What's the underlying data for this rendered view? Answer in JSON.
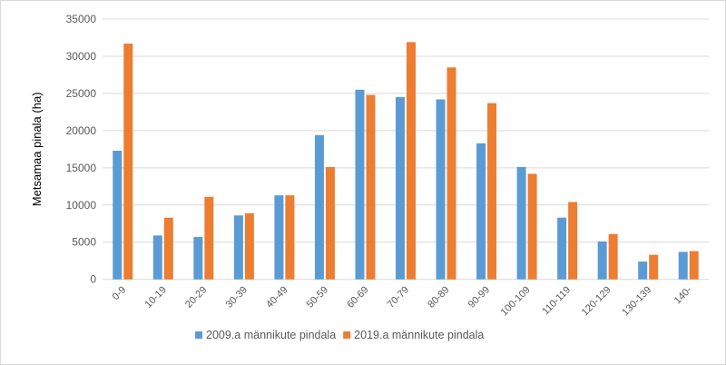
{
  "chart_data": {
    "type": "bar",
    "title": "",
    "xlabel": "",
    "ylabel": "Metsamaa pinala (ha)",
    "ylim": [
      0,
      35000
    ],
    "yticks": [
      0,
      5000,
      10000,
      15000,
      20000,
      25000,
      30000,
      35000
    ],
    "grid": true,
    "legend": "bottom",
    "categories": [
      "0-9",
      "10-19",
      "20-29",
      "30-39",
      "40-49",
      "50-59",
      "60-69",
      "70-79",
      "80-89",
      "90-99",
      "100-109",
      "110-119",
      "120-129",
      "130-139",
      "140-"
    ],
    "series": [
      {
        "name": "2009.a männikute pindala",
        "color": "#5b9bd5",
        "values": [
          17300,
          5900,
          5700,
          8600,
          11300,
          19400,
          25500,
          24500,
          24200,
          18300,
          15100,
          8300,
          5100,
          2400,
          3700
        ]
      },
      {
        "name": "2019.a männikute pindala",
        "color": "#ed7d31",
        "values": [
          31700,
          8300,
          11100,
          8900,
          11300,
          15100,
          24800,
          31900,
          28500,
          23700,
          14200,
          10400,
          6100,
          3300,
          3800
        ]
      }
    ]
  }
}
